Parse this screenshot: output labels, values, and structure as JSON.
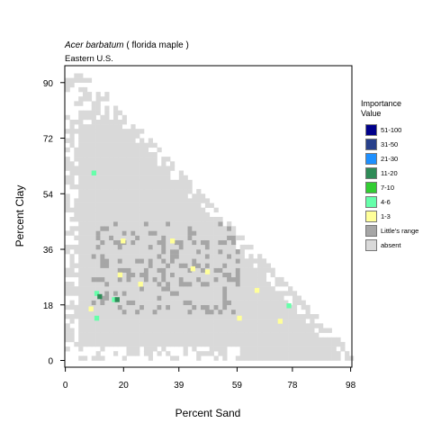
{
  "header": {
    "species": "Acer barbatum",
    "common": " ( florida maple )",
    "region": "Eastern U.S."
  },
  "legend": {
    "title_line1": "Importance",
    "title_line2": "Value",
    "items": [
      {
        "label": "51-100",
        "color": "#00008b"
      },
      {
        "label": "31-50",
        "color": "#27408b"
      },
      {
        "label": "21-30",
        "color": "#1e90ff"
      },
      {
        "label": "11-20",
        "color": "#2e8b57"
      },
      {
        "label": "7-10",
        "color": "#32cd32"
      },
      {
        "label": "4-6",
        "color": "#66ffaa"
      },
      {
        "label": "1-3",
        "color": "#ffff99"
      },
      {
        "label": "Little's range",
        "color": "#a6a6a6"
      },
      {
        "label": "absent",
        "color": "#d9d9d9"
      }
    ]
  },
  "chart_data": {
    "type": "heatmap",
    "xlabel": "Percent Sand",
    "ylabel": "Percent Clay",
    "xlim": [
      0,
      98
    ],
    "ylim": [
      0,
      93
    ],
    "xticks": [
      "0",
      "20",
      "39",
      "59",
      "78",
      "98"
    ],
    "yticks": [
      "0",
      "18",
      "36",
      "54",
      "72",
      "90"
    ],
    "notes": "Soil texture triangle; cells colored by importance value class",
    "present_points": [
      {
        "sand": 9,
        "clay": 60,
        "class": "4-6"
      },
      {
        "sand": 10,
        "clay": 21,
        "class": "4-6"
      },
      {
        "sand": 11,
        "clay": 20,
        "class": "11-20"
      },
      {
        "sand": 16,
        "clay": 19,
        "class": "4-6"
      },
      {
        "sand": 17,
        "clay": 19,
        "class": "11-20"
      },
      {
        "sand": 76,
        "clay": 17,
        "class": "4-6"
      },
      {
        "sand": 8,
        "clay": 16,
        "class": "1-3"
      },
      {
        "sand": 19,
        "clay": 38,
        "class": "1-3"
      },
      {
        "sand": 25,
        "clay": 24,
        "class": "1-3"
      },
      {
        "sand": 36,
        "clay": 38,
        "class": "1-3"
      },
      {
        "sand": 43,
        "clay": 29,
        "class": "1-3"
      },
      {
        "sand": 48,
        "clay": 28,
        "class": "1-3"
      },
      {
        "sand": 65,
        "clay": 22,
        "class": "1-3"
      },
      {
        "sand": 59,
        "clay": 13,
        "class": "1-3"
      },
      {
        "sand": 73,
        "clay": 12,
        "class": "1-3"
      },
      {
        "sand": 10,
        "clay": 13,
        "class": "4-6"
      },
      {
        "sand": 18,
        "clay": 27,
        "class": "1-3"
      }
    ]
  }
}
